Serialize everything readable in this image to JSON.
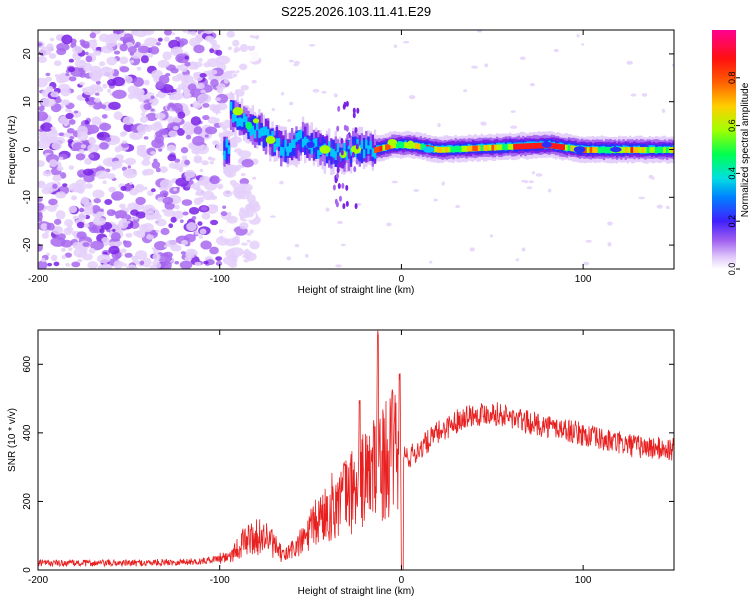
{
  "title": "S225.2026.103.11.41.E29",
  "chart_data": [
    {
      "type": "heatmap",
      "xlabel": "Height of straight line (km)",
      "ylabel": "Frequency (Hz)",
      "xlim": [
        -200,
        150
      ],
      "ylim": [
        -25,
        25
      ],
      "x_ticks": [
        -200,
        -100,
        0,
        100
      ],
      "y_ticks": [
        -20,
        -10,
        0,
        10,
        20
      ],
      "colorbar": {
        "label": "Normalized spectral amplitude",
        "range": [
          0,
          1
        ],
        "ticks": [
          0.0,
          0.2,
          0.4,
          0.6,
          0.8
        ],
        "tick_labels": [
          "0.0",
          "0.2",
          "0.4",
          "0.6",
          "0.8"
        ],
        "colormap": [
          "#ffffff",
          "#c9a6f2",
          "#7a22e6",
          "#2020ff",
          "#00c8ff",
          "#00ff70",
          "#c8ff00",
          "#ff9000",
          "#ff1a1a",
          "#ff0090"
        ]
      },
      "ridge": {
        "description_points": [
          {
            "x": -95,
            "f": 8
          },
          {
            "x": -85,
            "f": 5
          },
          {
            "x": -75,
            "f": 3
          },
          {
            "x": -65,
            "f": 0
          },
          {
            "x": -55,
            "f": 2
          },
          {
            "x": -45,
            "f": 0
          },
          {
            "x": -35,
            "f": -1
          },
          {
            "x": -25,
            "f": 0
          },
          {
            "x": -15,
            "f": 0
          },
          {
            "x": -5,
            "f": 1
          },
          {
            "x": 5,
            "f": 1
          },
          {
            "x": 20,
            "f": 0
          },
          {
            "x": 50,
            "f": 0.5
          },
          {
            "x": 80,
            "f": 1
          },
          {
            "x": 100,
            "f": 0
          },
          {
            "x": 130,
            "f": 0
          },
          {
            "x": 150,
            "f": 0
          }
        ],
        "noise_region_xlim": [
          -200,
          -95
        ]
      }
    },
    {
      "type": "line",
      "xlabel": "Height of straight line (km)",
      "ylabel": "SNR (10 * v/v)",
      "xlim": [
        -200,
        150
      ],
      "ylim": [
        0,
        700
      ],
      "x_ticks": [
        -200,
        -100,
        0,
        100
      ],
      "y_ticks": [
        0,
        200,
        400,
        600
      ],
      "series": [
        {
          "name": "SNR",
          "color": "#e82020",
          "envelope_points": [
            {
              "x": -200,
              "y": 20
            },
            {
              "x": -150,
              "y": 20
            },
            {
              "x": -110,
              "y": 25
            },
            {
              "x": -95,
              "y": 40
            },
            {
              "x": -85,
              "y": 90
            },
            {
              "x": -75,
              "y": 100
            },
            {
              "x": -65,
              "y": 40
            },
            {
              "x": -55,
              "y": 80
            },
            {
              "x": -45,
              "y": 150
            },
            {
              "x": -35,
              "y": 200
            },
            {
              "x": -25,
              "y": 240
            },
            {
              "x": -15,
              "y": 300
            },
            {
              "x": -5,
              "y": 340
            },
            {
              "x": 5,
              "y": 330
            },
            {
              "x": 20,
              "y": 400
            },
            {
              "x": 35,
              "y": 450
            },
            {
              "x": 50,
              "y": 460
            },
            {
              "x": 70,
              "y": 430
            },
            {
              "x": 90,
              "y": 410
            },
            {
              "x": 110,
              "y": 380
            },
            {
              "x": 130,
              "y": 360
            },
            {
              "x": 150,
              "y": 350
            }
          ],
          "spikes": [
            {
              "x": -23,
              "y": 500
            },
            {
              "x": -13,
              "y": 700
            },
            {
              "x": -1,
              "y": 585
            }
          ]
        }
      ]
    }
  ]
}
